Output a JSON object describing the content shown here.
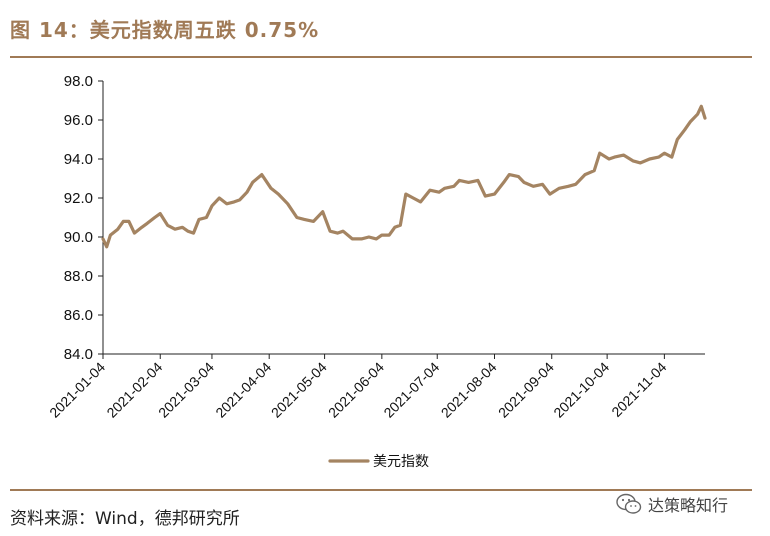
{
  "title": "图 14：美元指数周五跌 0.75%",
  "source": "资料来源：Wind，德邦研究所",
  "watermark": "达策略知行",
  "colors": {
    "accent": "#a07a56",
    "line": "#a48462",
    "axis": "#222222"
  },
  "icons": {
    "watermark": "wechat-icon"
  },
  "chart_data": {
    "type": "line",
    "title": "",
    "xlabel": "",
    "ylabel": "",
    "ylim": [
      84.0,
      98.0
    ],
    "yticks": [
      "84.0",
      "86.0",
      "88.0",
      "90.0",
      "92.0",
      "94.0",
      "96.0",
      "98.0"
    ],
    "xticks": [
      "2021-01-04",
      "2021-02-04",
      "2021-03-04",
      "2021-04-04",
      "2021-05-04",
      "2021-06-04",
      "2021-07-04",
      "2021-08-04",
      "2021-09-04",
      "2021-10-04",
      "2021-11-04"
    ],
    "x_range": [
      "2021-01-04",
      "2021-11-26"
    ],
    "grid": false,
    "legend_position": "bottom",
    "series": [
      {
        "name": "美元指数",
        "x": [
          "2021-01-04",
          "2021-01-06",
          "2021-01-08",
          "2021-01-12",
          "2021-01-15",
          "2021-01-18",
          "2021-01-21",
          "2021-01-25",
          "2021-01-28",
          "2021-02-01",
          "2021-02-04",
          "2021-02-08",
          "2021-02-12",
          "2021-02-16",
          "2021-02-19",
          "2021-02-22",
          "2021-02-25",
          "2021-03-01",
          "2021-03-04",
          "2021-03-08",
          "2021-03-12",
          "2021-03-16",
          "2021-03-19",
          "2021-03-23",
          "2021-03-26",
          "2021-03-31",
          "2021-04-05",
          "2021-04-09",
          "2021-04-14",
          "2021-04-19",
          "2021-04-23",
          "2021-04-28",
          "2021-05-03",
          "2021-05-07",
          "2021-05-11",
          "2021-05-14",
          "2021-05-19",
          "2021-05-24",
          "2021-05-28",
          "2021-06-01",
          "2021-06-04",
          "2021-06-08",
          "2021-06-11",
          "2021-06-14",
          "2021-06-17",
          "2021-06-21",
          "2021-06-25",
          "2021-06-30",
          "2021-07-05",
          "2021-07-08",
          "2021-07-13",
          "2021-07-16",
          "2021-07-21",
          "2021-07-26",
          "2021-07-30",
          "2021-08-04",
          "2021-08-09",
          "2021-08-12",
          "2021-08-17",
          "2021-08-20",
          "2021-08-25",
          "2021-08-30",
          "2021-09-03",
          "2021-09-08",
          "2021-09-13",
          "2021-09-17",
          "2021-09-22",
          "2021-09-27",
          "2021-09-30",
          "2021-10-05",
          "2021-10-08",
          "2021-10-13",
          "2021-10-18",
          "2021-10-22",
          "2021-10-27",
          "2021-11-01",
          "2021-11-04",
          "2021-11-08",
          "2021-11-11",
          "2021-11-15",
          "2021-11-18",
          "2021-11-22",
          "2021-11-24",
          "2021-11-26"
        ],
        "values": [
          89.9,
          89.5,
          90.1,
          90.4,
          90.8,
          90.8,
          90.2,
          90.5,
          90.7,
          91.0,
          91.2,
          90.6,
          90.4,
          90.5,
          90.3,
          90.2,
          90.9,
          91.0,
          91.6,
          92.0,
          91.7,
          91.8,
          91.9,
          92.3,
          92.8,
          93.2,
          92.5,
          92.2,
          91.7,
          91.0,
          90.9,
          90.8,
          91.3,
          90.3,
          90.2,
          90.3,
          89.9,
          89.9,
          90.0,
          89.9,
          90.1,
          90.1,
          90.5,
          90.6,
          92.2,
          92.0,
          91.8,
          92.4,
          92.3,
          92.5,
          92.6,
          92.9,
          92.8,
          92.9,
          92.1,
          92.2,
          92.8,
          93.2,
          93.1,
          92.8,
          92.6,
          92.7,
          92.2,
          92.5,
          92.6,
          92.7,
          93.2,
          93.4,
          94.3,
          94.0,
          94.1,
          94.2,
          93.9,
          93.8,
          94.0,
          94.1,
          94.3,
          94.1,
          95.0,
          95.5,
          95.9,
          96.3,
          96.7,
          96.1
        ]
      }
    ]
  }
}
